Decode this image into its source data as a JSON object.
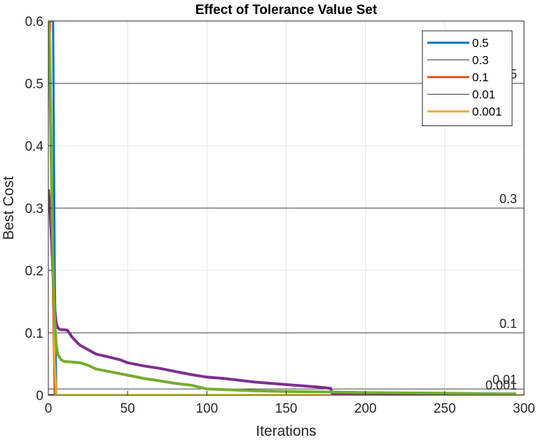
{
  "chart_data": {
    "type": "line",
    "title": "Effect of Tolerance Value Set",
    "xlabel": "Iterations",
    "ylabel": "Best Cost",
    "xlim": [
      0,
      300
    ],
    "ylim": [
      0,
      0.6
    ],
    "xticks": [
      0,
      50,
      100,
      150,
      200,
      250,
      300
    ],
    "xtick_labels": [
      "0",
      "50",
      "100",
      "150",
      "200",
      "250",
      "300"
    ],
    "yticks": [
      0,
      0.1,
      0.2,
      0.3,
      0.4,
      0.5,
      0.6
    ],
    "ytick_labels": [
      "0",
      "0.1",
      "0.2",
      "0.3",
      "0.4",
      "0.5",
      "0.6"
    ],
    "grid": true,
    "legend_position": "top-right",
    "legend": [
      {
        "label": "0.5",
        "color": "#0072BD",
        "width": 3
      },
      {
        "label": "0.3",
        "color": "#000000",
        "width": 0.8
      },
      {
        "label": "0.1",
        "color": "#D95319",
        "width": 3
      },
      {
        "label": "0.01",
        "color": "#000000",
        "width": 0.8
      },
      {
        "label": "0.001",
        "color": "#EDB120",
        "width": 3
      }
    ],
    "reference_lines": [
      {
        "y": 0.5,
        "label": "0.5"
      },
      {
        "y": 0.3,
        "label": "0.3"
      },
      {
        "y": 0.1,
        "label": "0.1"
      },
      {
        "y": 0.01,
        "label": "0.01"
      },
      {
        "y": 0.001,
        "label": "0.001"
      }
    ],
    "series": [
      {
        "color": "#0072BD",
        "width": 3,
        "x": [
          0,
          1,
          2,
          3,
          4,
          5,
          300
        ],
        "y": [
          0.6,
          0.6,
          0.6,
          0.6,
          0.2,
          0.0,
          0.0
        ]
      },
      {
        "color": "#D95319",
        "width": 3,
        "x": [
          0,
          1,
          2,
          3,
          4,
          300
        ],
        "y": [
          0.6,
          0.6,
          0.4,
          0.15,
          0.0,
          0.0
        ]
      },
      {
        "color": "#EDB120",
        "width": 3,
        "x": [
          0,
          1,
          2,
          3,
          4,
          5,
          300
        ],
        "y": [
          0.6,
          0.58,
          0.4,
          0.2,
          0.05,
          0.0,
          0.0
        ]
      },
      {
        "color": "#7E2F8E",
        "width": 4,
        "x": [
          0,
          1,
          2,
          3,
          4,
          5,
          6,
          7,
          8,
          10,
          12,
          15,
          18,
          20,
          25,
          30,
          35,
          40,
          45,
          50,
          60,
          70,
          80,
          90,
          100,
          110,
          120,
          130,
          140,
          150,
          160,
          170,
          178,
          179,
          190,
          200,
          250,
          295
        ],
        "y": [
          0.33,
          0.3,
          0.25,
          0.19,
          0.14,
          0.115,
          0.108,
          0.106,
          0.105,
          0.105,
          0.104,
          0.093,
          0.085,
          0.08,
          0.073,
          0.066,
          0.063,
          0.06,
          0.057,
          0.052,
          0.047,
          0.043,
          0.038,
          0.033,
          0.029,
          0.027,
          0.024,
          0.021,
          0.019,
          0.017,
          0.015,
          0.013,
          0.011,
          0.003,
          0.003,
          0.003,
          0.002,
          0.002
        ]
      },
      {
        "color": "#77AC30",
        "width": 4,
        "x": [
          0,
          1,
          2,
          3,
          4,
          5,
          6,
          8,
          10,
          15,
          20,
          25,
          30,
          40,
          50,
          60,
          70,
          80,
          90,
          100,
          110,
          130,
          150,
          180,
          200,
          250,
          295
        ],
        "y": [
          0.6,
          0.5,
          0.35,
          0.2,
          0.12,
          0.08,
          0.065,
          0.057,
          0.054,
          0.053,
          0.052,
          0.048,
          0.042,
          0.037,
          0.032,
          0.027,
          0.023,
          0.019,
          0.016,
          0.01,
          0.009,
          0.007,
          0.006,
          0.005,
          0.004,
          0.003,
          0.002
        ]
      }
    ]
  }
}
